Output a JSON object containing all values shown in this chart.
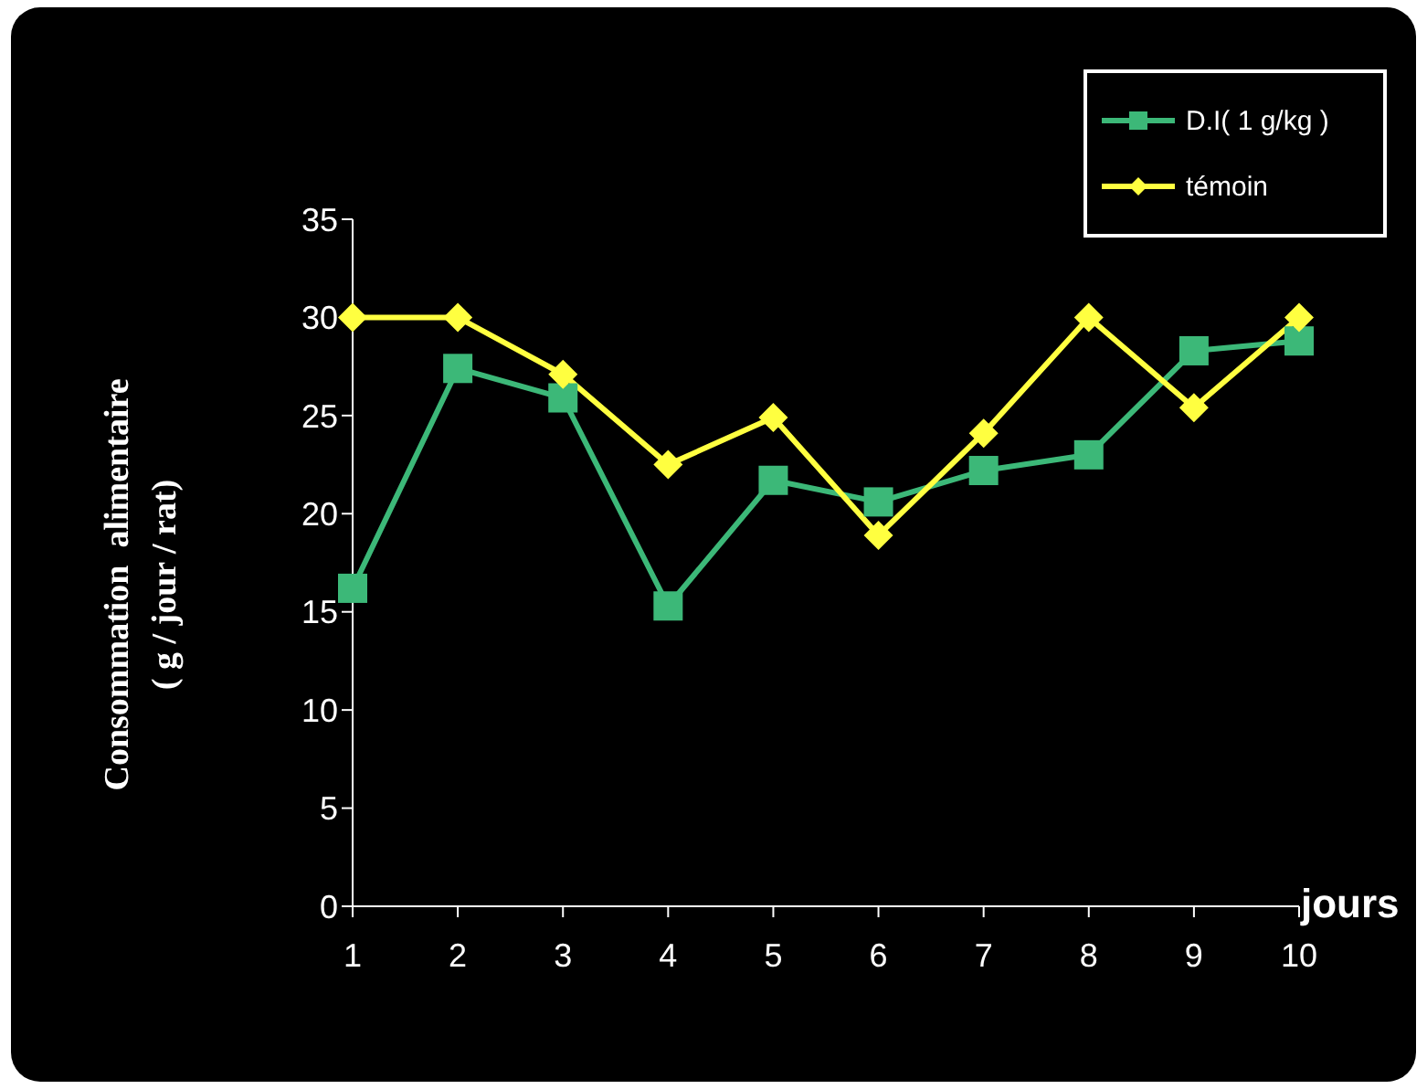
{
  "chart_data": {
    "type": "line",
    "ylabel": "Consommation  alimentaire\n( g / jour / rat)",
    "xlabel": "jours",
    "categories": [
      "1",
      "2",
      "3",
      "4",
      "5",
      "6",
      "7",
      "8",
      "9",
      "10"
    ],
    "series": [
      {
        "name": "D.I( 1 g/kg )",
        "color": "#3cb878",
        "marker": "square",
        "values": [
          16.2,
          27.4,
          25.9,
          15.3,
          21.7,
          20.6,
          22.2,
          23.0,
          28.3,
          28.8
        ]
      },
      {
        "name": "témoin",
        "color": "#ffff40",
        "marker": "diamond",
        "values": [
          30,
          30,
          27.1,
          22.5,
          24.9,
          18.9,
          24.1,
          30,
          25.4,
          30
        ]
      }
    ],
    "ylim": [
      0,
      35
    ],
    "yticks": [
      0,
      5,
      10,
      15,
      20,
      25,
      30,
      35
    ],
    "grid": false,
    "legend": "top right"
  }
}
